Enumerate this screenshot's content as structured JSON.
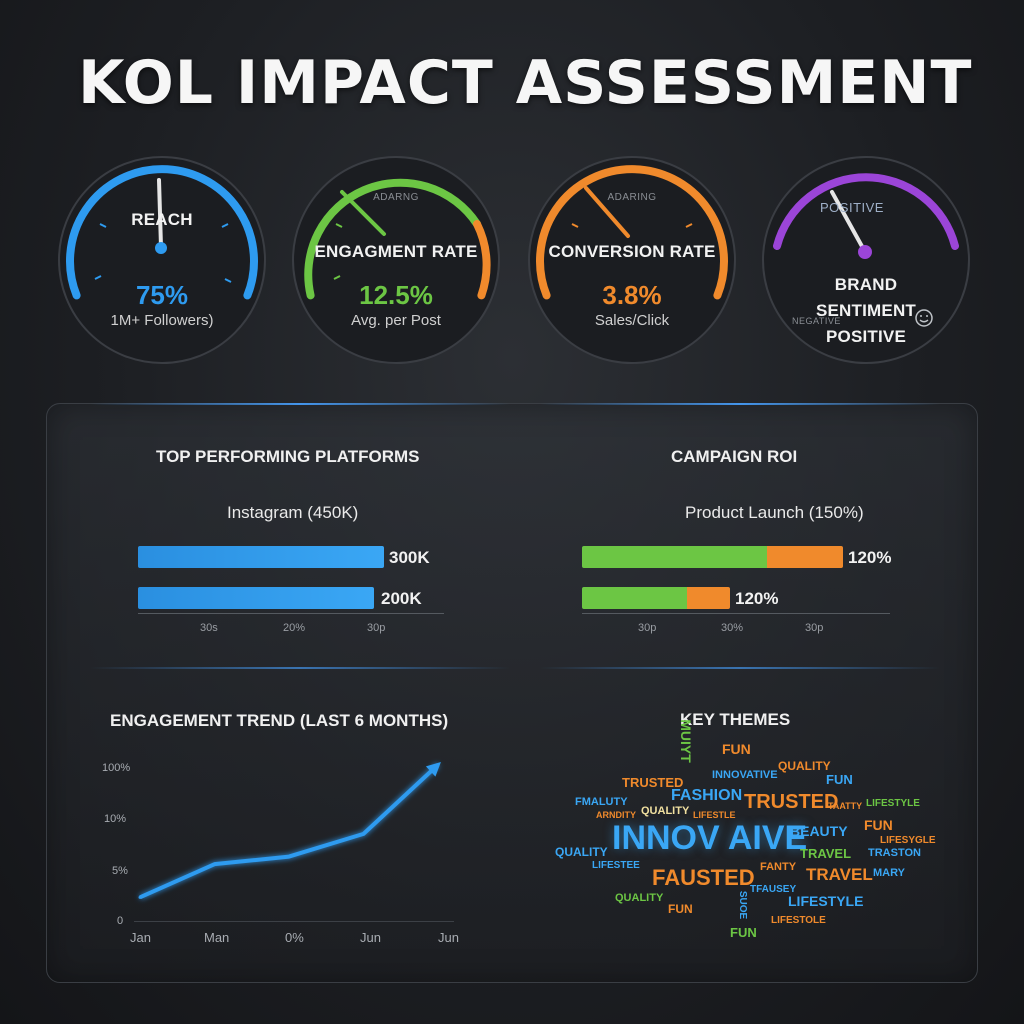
{
  "title": "KOL IMPACT ASSESSMENT",
  "colors": {
    "blue": "#2e9bf0",
    "green": "#6cc644",
    "orange": "#f08a2c",
    "purple": "#9b45d8"
  },
  "gauges": [
    {
      "label": "REACH",
      "value": "75%",
      "sub": "1M+ Followers)",
      "small": "",
      "color": "#2e9bf0"
    },
    {
      "label": "ENGAGMENT RATE",
      "value": "12.5%",
      "sub": "Avg. per Post",
      "small": "ADARNG",
      "color": "#6cc644"
    },
    {
      "label": "CONVERSION RATE",
      "value": "3.8%",
      "sub": "Sales/Click",
      "small": "ADARING",
      "color": "#f08a2c"
    },
    {
      "label": "BRAND SENTIMENT POSITIVE",
      "top": "POSITIVE",
      "bottom_left": "NEGATIVE",
      "color": "#9b45d8",
      "icon": "smiley-icon"
    }
  ],
  "platforms": {
    "title": "TOP PERFORMING PLATFORMS",
    "subtitle": "Instagram (450K)",
    "bars": [
      {
        "value_label": "300K",
        "fill": 1.0
      },
      {
        "value_label": "200K",
        "fill": 0.96
      }
    ],
    "ticks": [
      "30s",
      "20%",
      "30p"
    ]
  },
  "roi": {
    "title": "CAMPAIGN ROI",
    "subtitle": "Product Launch (150%)",
    "bars": [
      {
        "value_label": "120%",
        "green": 0.71,
        "orange": 0.29
      },
      {
        "value_label": "120%",
        "green": 0.71,
        "orange": 0.29
      }
    ],
    "ticks": [
      "30p",
      "30%",
      "30p"
    ]
  },
  "trend": {
    "title": "ENGAGEMENT TREND (LAST 6 MONTHS)",
    "y_ticks": [
      "100%",
      "10%",
      "5%",
      "0"
    ],
    "x_ticks": [
      "Jan",
      "Man",
      "0%",
      "Jun",
      "Jun"
    ]
  },
  "themes": {
    "title": "KEY THEMES",
    "words": [
      "MUIYT",
      "FUN",
      "QUALITY",
      "TRUSTED",
      "INNOVATIVE",
      "FUN",
      "FMALUTY",
      "FASHION",
      "TRUSTED",
      "TAATTY",
      "LIFESTYLE",
      "ARNDITY",
      "QUALITY",
      "LIFESTLE",
      "FUN",
      "INNOV AIVE",
      "BEAUTY",
      "LIFESYGLE",
      "QUALITY",
      "LIFESTEE",
      "TRAVEL",
      "TRASTON",
      "FANTY",
      "MARY",
      "FAUSTED",
      "TRAVEL",
      "QUALITY",
      "TFAUSEY",
      "FUN",
      "SUOE",
      "LIFESTYLE",
      "FUN",
      "LIFESTOLE"
    ]
  },
  "chart_data": [
    {
      "type": "line",
      "title": "ENGAGEMENT TREND (LAST 6 MONTHS)",
      "x": [
        "Jan",
        "Man",
        "0%",
        "Jun",
        "Jun"
      ],
      "values": [
        2.5,
        6,
        6.8,
        9.2,
        16.5
      ],
      "ylim": [
        0,
        17
      ]
    }
  ]
}
